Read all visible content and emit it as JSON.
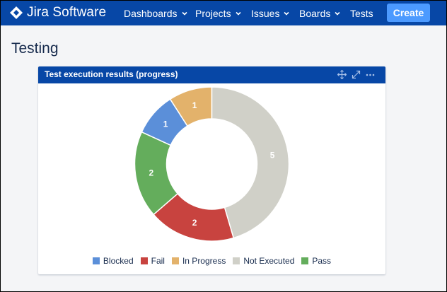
{
  "topnav": {
    "logo_text": "Jira Software",
    "items": [
      {
        "label": "Dashboards",
        "has_dropdown": true
      },
      {
        "label": "Projects",
        "has_dropdown": true
      },
      {
        "label": "Issues",
        "has_dropdown": true
      },
      {
        "label": "Boards",
        "has_dropdown": true
      },
      {
        "label": "Tests",
        "has_dropdown": false
      }
    ],
    "create_label": "Create",
    "colors": {
      "bar": "#0747a6",
      "create": "#4c9aff"
    }
  },
  "page": {
    "title": "Testing"
  },
  "gadget": {
    "title": "Test execution results (progress)",
    "icons": [
      "move-icon",
      "expand-icon",
      "more-icon"
    ]
  },
  "chart_data": {
    "type": "pie",
    "donut": true,
    "title": "",
    "categories": [
      "Blocked",
      "Fail",
      "In Progress",
      "Not Executed",
      "Pass"
    ],
    "values": [
      1,
      2,
      1,
      5,
      2
    ],
    "colors": [
      "#5b8fd9",
      "#c8433f",
      "#e3b26b",
      "#d0d0c8",
      "#64ad5c"
    ],
    "slice_order": [
      "In Progress",
      "Not Executed",
      "Fail",
      "Pass",
      "Blocked"
    ],
    "legend_position": "bottom"
  }
}
